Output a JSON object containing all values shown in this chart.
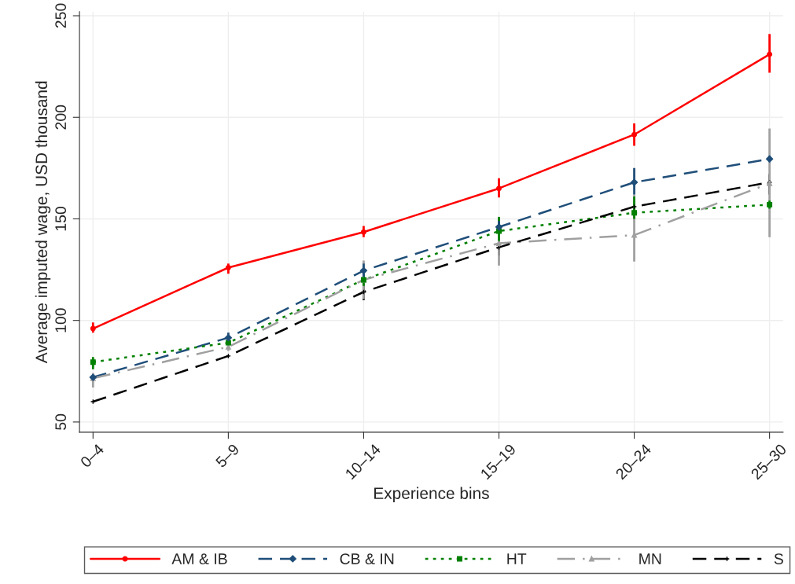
{
  "chart_data": {
    "type": "line",
    "xlabel": "Experience bins",
    "ylabel": "Average imputed wage, USD thousand",
    "categories": [
      "0–4",
      "5–9",
      "10–14",
      "15–19",
      "20–24",
      "25–30"
    ],
    "ylim": [
      45,
      252
    ],
    "yticks": [
      50,
      100,
      150,
      200,
      250
    ],
    "grid": true,
    "legend": "bottom",
    "series": [
      {
        "name": "AM & IB",
        "color": "#ff0000",
        "marker": "circle",
        "line_style": "solid",
        "values": [
          96,
          126,
          143.5,
          165,
          191.5,
          231
        ],
        "errors": [
          [
            94,
            99
          ],
          [
            123,
            128
          ],
          [
            141,
            146.5
          ],
          [
            160.5,
            170
          ],
          [
            186,
            197
          ],
          [
            222,
            241
          ]
        ]
      },
      {
        "name": "CB & IN",
        "color": "#1f4e79",
        "marker": "diamond",
        "line_style": "dashed",
        "values": [
          72,
          91.5,
          124.5,
          146,
          168,
          179.5
        ],
        "errors": [
          null,
          [
            89,
            94
          ],
          [
            121,
            128
          ],
          [
            143,
            149
          ],
          [
            162,
            175
          ],
          [
            178,
            181
          ]
        ]
      },
      {
        "name": "HT",
        "color": "#008000",
        "marker": "square",
        "line_style": "dotted",
        "values": [
          79.5,
          89,
          120,
          144,
          153,
          157
        ],
        "errors": [
          [
            76,
            82
          ],
          null,
          [
            117,
            123
          ],
          [
            139,
            151
          ],
          [
            150,
            161
          ],
          [
            155,
            159
          ]
        ]
      },
      {
        "name": "MN",
        "color": "#a0a0a0",
        "marker": "triangle",
        "line_style": "dashdot",
        "values": [
          71.5,
          87,
          120,
          138,
          142,
          167.5
        ],
        "errors": [
          [
            67,
            74
          ],
          [
            85,
            90
          ],
          [
            110.5,
            129.5
          ],
          [
            127,
            150
          ],
          [
            129,
            162
          ],
          [
            141,
            194.5
          ]
        ]
      },
      {
        "name": "S",
        "color": "#000000",
        "marker": "cross",
        "line_style": "dashed",
        "values": [
          60,
          82.5,
          114,
          136,
          156,
          168
        ],
        "errors": [
          null,
          null,
          [
            110,
            118
          ],
          [
            132,
            140
          ],
          null,
          [
            162,
            172
          ]
        ]
      }
    ]
  }
}
